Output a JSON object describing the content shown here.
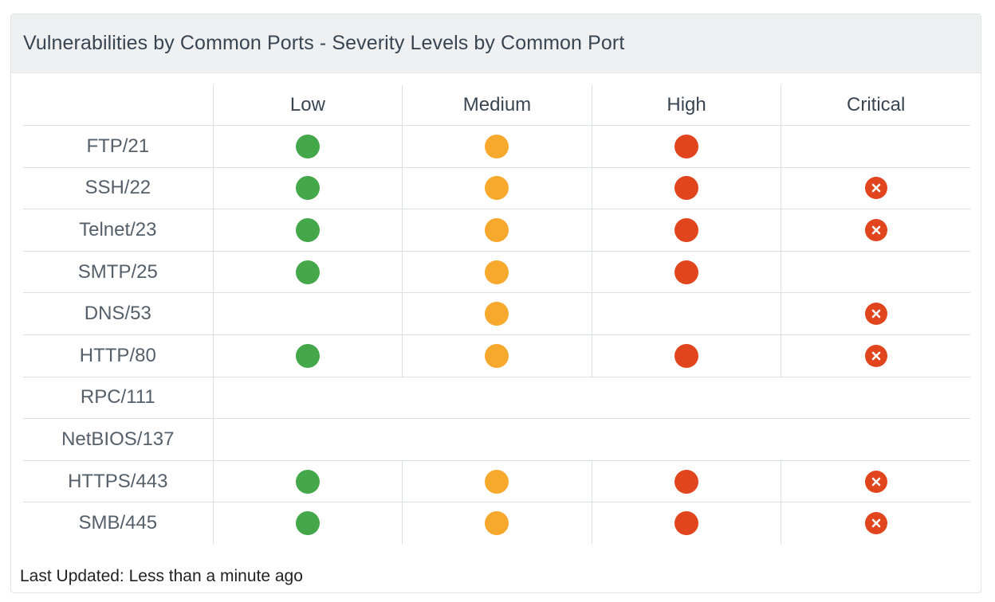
{
  "panel": {
    "title": "Vulnerabilities by Common Ports - Severity Levels by Common Port",
    "footer": "Last Updated: Less than a minute ago"
  },
  "columns": [
    "Low",
    "Medium",
    "High",
    "Critical"
  ],
  "colors": {
    "low": "#44a84a",
    "medium": "#f6a92c",
    "high": "#e1451e",
    "critical": "#e1451e"
  },
  "icons": {
    "low": "green-circle-icon",
    "medium": "orange-circle-icon",
    "high": "red-circle-icon",
    "critical": "x-circle-icon"
  },
  "rows": [
    {
      "port": "FTP/21",
      "low": true,
      "medium": true,
      "high": true,
      "critical": false
    },
    {
      "port": "SSH/22",
      "low": true,
      "medium": true,
      "high": true,
      "critical": true
    },
    {
      "port": "Telnet/23",
      "low": true,
      "medium": true,
      "high": true,
      "critical": true
    },
    {
      "port": "SMTP/25",
      "low": true,
      "medium": true,
      "high": true,
      "critical": false
    },
    {
      "port": "DNS/53",
      "low": false,
      "medium": true,
      "high": false,
      "critical": true
    },
    {
      "port": "HTTP/80",
      "low": true,
      "medium": true,
      "high": true,
      "critical": true
    },
    {
      "port": "RPC/111",
      "low": false,
      "medium": false,
      "high": false,
      "critical": false
    },
    {
      "port": "NetBIOS/137",
      "low": false,
      "medium": false,
      "high": false,
      "critical": false
    },
    {
      "port": "HTTPS/443",
      "low": true,
      "medium": true,
      "high": true,
      "critical": true
    },
    {
      "port": "SMB/445",
      "low": true,
      "medium": true,
      "high": true,
      "critical": true
    }
  ]
}
